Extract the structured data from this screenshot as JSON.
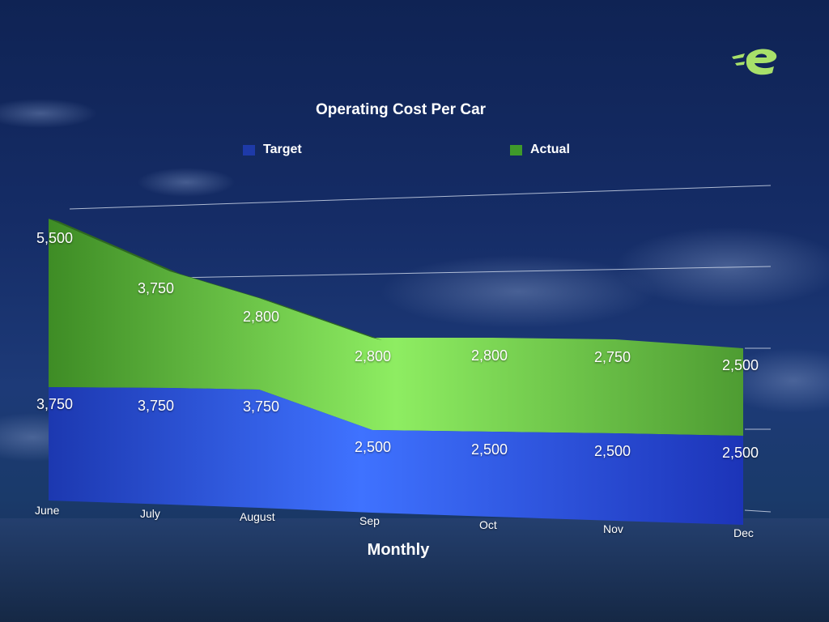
{
  "colors": {
    "target": "#2f5de0",
    "actual": "#6fd14c",
    "legend_target": "#1e3aa8",
    "legend_actual": "#3f9a2a",
    "logo": "#a8e06a"
  },
  "chart_data": {
    "type": "area",
    "title": "Operating Cost Per Car",
    "xlabel": "Monthly",
    "ylabel": "",
    "stacked": true,
    "categories": [
      "June",
      "July",
      "August",
      "Sep",
      "Oct",
      "Nov",
      "Dec"
    ],
    "series": [
      {
        "name": "Target",
        "values": [
          3750,
          3750,
          3750,
          2500,
          2500,
          2500,
          2500
        ]
      },
      {
        "name": "Actual",
        "values": [
          5500,
          3750,
          2800,
          2800,
          2800,
          2750,
          2500
        ]
      }
    ],
    "value_labels": {
      "target": [
        "3,750",
        "3,750",
        "3,750",
        "2,500",
        "2,500",
        "2,500",
        "2,500"
      ],
      "actual": [
        "5,500",
        "3,750",
        "2,800",
        "2,800",
        "2,800",
        "2,750",
        "2,500"
      ]
    },
    "legend_position": "top",
    "grid": true
  }
}
